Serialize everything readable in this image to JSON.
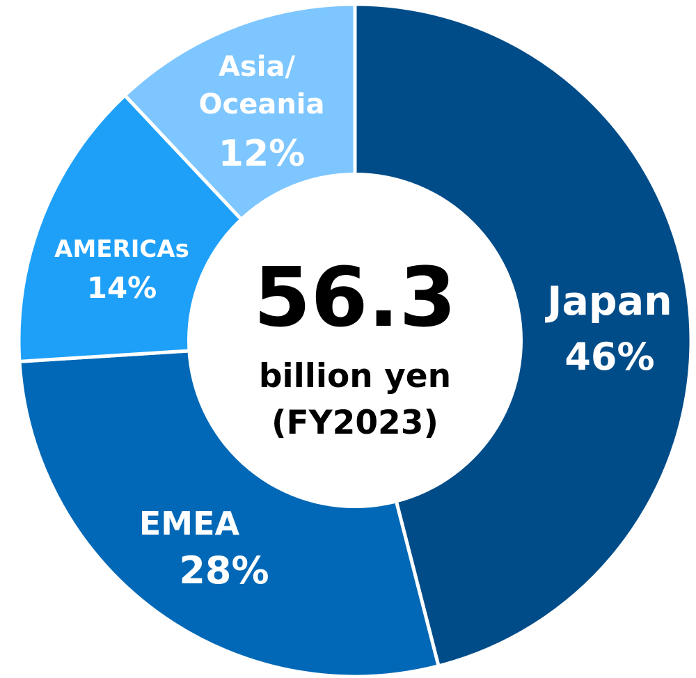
{
  "chart_data": {
    "type": "pie",
    "style": "donut",
    "slices": [
      {
        "name": "Japan",
        "value": 46,
        "pct_label": "46%",
        "color": "#004C88"
      },
      {
        "name": "EMEA",
        "value": 28,
        "pct_label": "28%",
        "color": "#0068B6"
      },
      {
        "name": "AMERICAs",
        "value": 14,
        "pct_label": "14%",
        "color": "#1EA0F8"
      },
      {
        "name": "Asia/ Oceania",
        "value": 12,
        "pct_label": "12%",
        "color": "#7EC6FF"
      }
    ],
    "center": {
      "value": "56.3",
      "unit": "billion yen",
      "period": "(FY2023)"
    }
  }
}
